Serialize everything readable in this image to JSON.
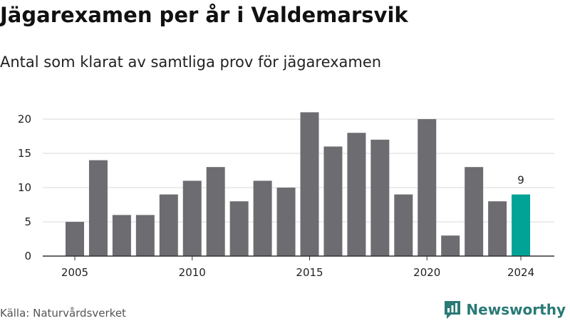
{
  "header": {
    "title": "Jägarexamen per år i Valdemarsvik",
    "subtitle": "Antal som klarat av samtliga prov för jägarexamen"
  },
  "footer": {
    "source": "Källa: Naturvårdsverket",
    "logo_text": "Newsworthy",
    "logo_icon": "bar-chart-speech-bubble-icon"
  },
  "colors": {
    "bar": "#6d6c71",
    "highlight": "#00a396",
    "grid": "#d9d9d9",
    "axis": "#333333",
    "brand": "#2a7a76"
  },
  "chart_data": {
    "type": "bar",
    "title": "Jägarexamen per år i Valdemarsvik",
    "subtitle": "Antal som klarat av samtliga prov för jägarexamen",
    "categories": [
      2005,
      2006,
      2007,
      2008,
      2009,
      2010,
      2011,
      2012,
      2013,
      2014,
      2015,
      2016,
      2017,
      2018,
      2019,
      2020,
      2021,
      2022,
      2023,
      2024
    ],
    "values": [
      5,
      14,
      6,
      6,
      9,
      11,
      13,
      8,
      11,
      10,
      21,
      16,
      18,
      17,
      9,
      20,
      3,
      13,
      8,
      9
    ],
    "highlight_category": 2024,
    "data_labels": [
      {
        "category": 2024,
        "text": "9"
      }
    ],
    "x_ticks": [
      2005,
      2010,
      2015,
      2020,
      2024
    ],
    "y_ticks": [
      0,
      5,
      10,
      15,
      20
    ],
    "ylim": [
      0,
      22
    ],
    "xlabel": "",
    "ylabel": "",
    "grid": true,
    "legend": "none"
  }
}
